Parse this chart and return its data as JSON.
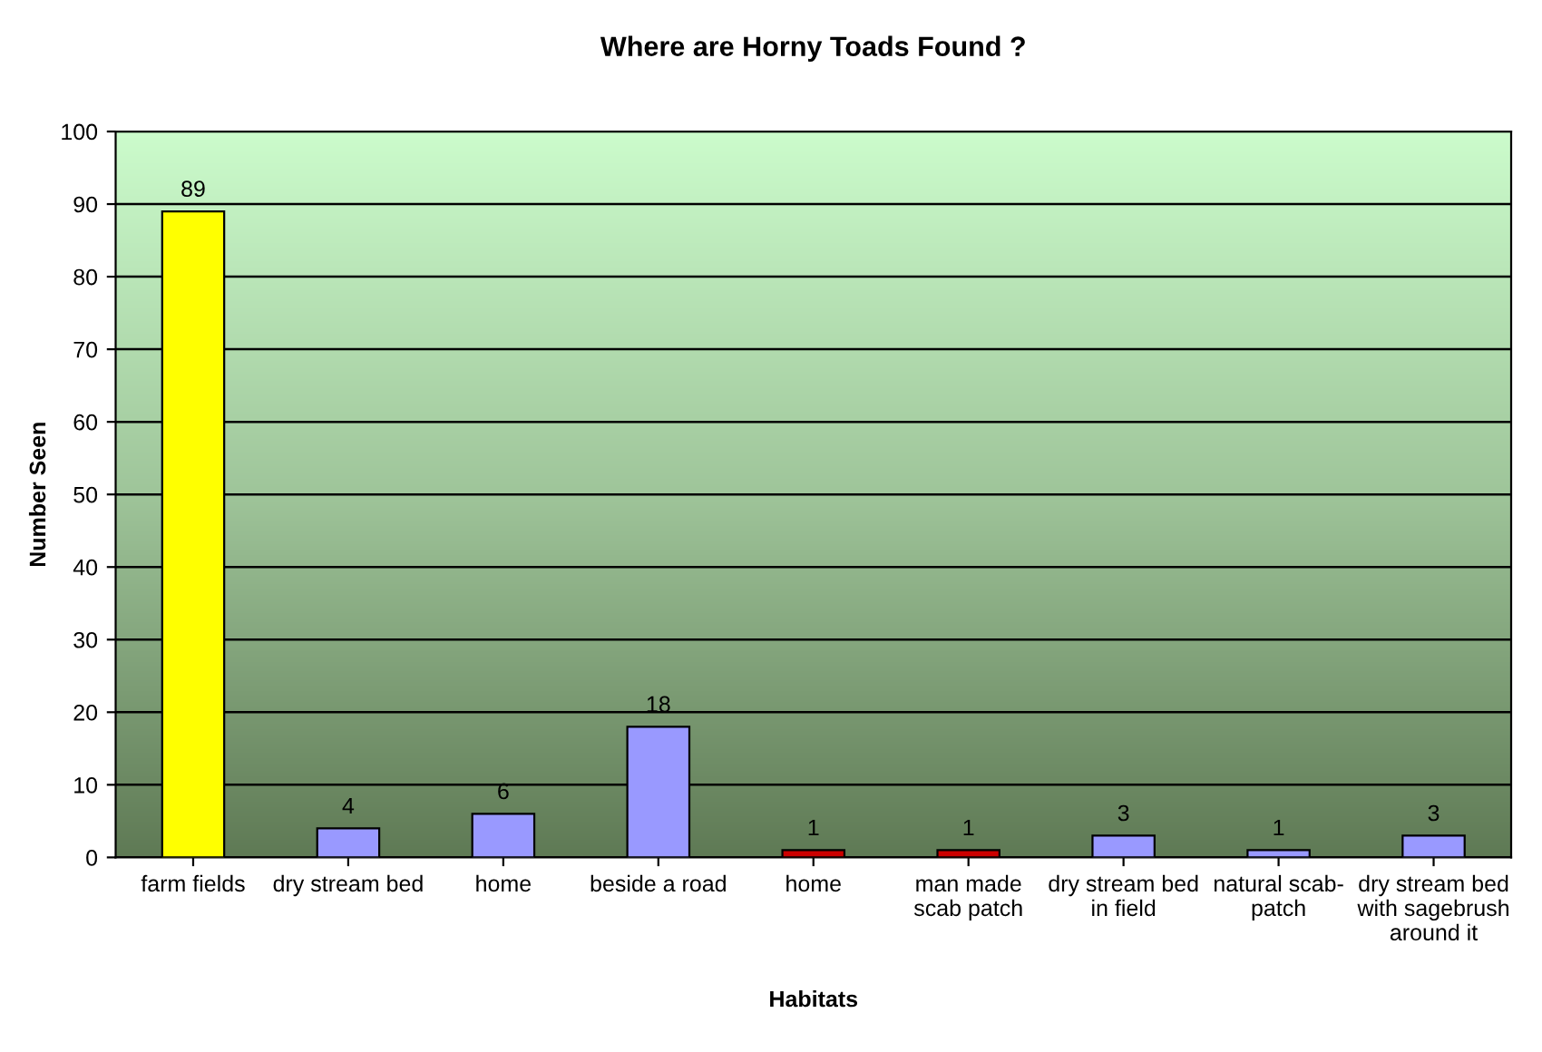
{
  "chart_data": {
    "type": "bar",
    "title": "Where are Horny Toads Found ?",
    "xlabel": "Habitats",
    "ylabel": "Number Seen",
    "categories": [
      "farm fields",
      "dry stream bed",
      "home",
      "beside a road",
      "home",
      "man made\nscab patch",
      "dry stream bed\nin field",
      "natural scab-\npatch",
      "dry stream bed\nwith sagebrush\naround it"
    ],
    "values": [
      89,
      4,
      6,
      18,
      1,
      1,
      3,
      1,
      3
    ],
    "colors": [
      "#ffff00",
      "#9999ff",
      "#9999ff",
      "#9999ff",
      "#cc0000",
      "#cc0000",
      "#9999ff",
      "#9999ff",
      "#9999ff"
    ],
    "ylim": [
      0,
      100
    ],
    "yticks": [
      0,
      10,
      20,
      30,
      40,
      50,
      60,
      70,
      80,
      90,
      100
    ],
    "grid": "y",
    "data_labels": true
  }
}
